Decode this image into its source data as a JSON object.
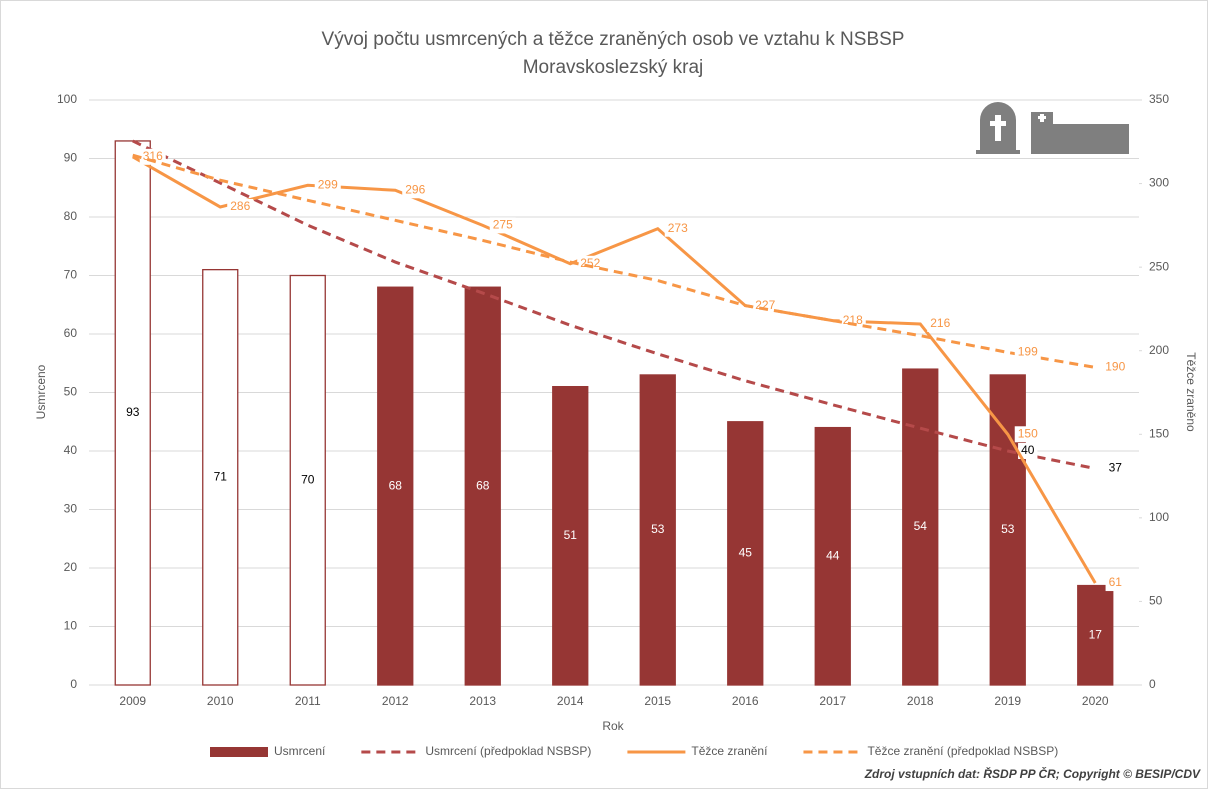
{
  "chart_data": {
    "type": "combo",
    "title": "Vývoj počtu usmrcených a těžce zraněných osob ve vztahu k NSBSP",
    "subtitle": "Moravskoslezský kraj",
    "x_label": "Rok",
    "y_label": "Usmrceno",
    "y2_label": "Těžce zraněno",
    "source": "Zdroj vstupních dat: ŘSDP PP ČR; Copyright © BESIP/CDV",
    "categories": [
      "2009",
      "2010",
      "2011",
      "2012",
      "2013",
      "2014",
      "2015",
      "2016",
      "2017",
      "2018",
      "2019",
      "2020"
    ],
    "ylim": [
      0,
      100
    ],
    "yticks": [
      0,
      10,
      20,
      30,
      40,
      50,
      60,
      70,
      80,
      90,
      100
    ],
    "y2lim": [
      0,
      350
    ],
    "y2ticks": [
      0,
      50,
      100,
      150,
      200,
      250,
      300,
      350
    ],
    "series": [
      {
        "name": "Usmrcení",
        "kind": "bar",
        "color": "#963634",
        "fill_colors": [
          "#ffffff",
          "#ffffff",
          "#ffffff",
          "#963634",
          "#963634",
          "#963634",
          "#963634",
          "#963634",
          "#963634",
          "#963634",
          "#963634",
          "#963634"
        ],
        "values": [
          93,
          71,
          70,
          68,
          68,
          51,
          53,
          45,
          44,
          54,
          53,
          17
        ]
      },
      {
        "name": "Usmrcení (předpoklad NSBSP)",
        "kind": "line",
        "dashed": true,
        "color": "#b54a4a",
        "values": [
          93,
          85.8,
          78.6,
          72.3,
          67,
          61.5,
          56.6,
          52,
          47.9,
          43.9,
          40,
          37
        ],
        "value_labels": [
          null,
          null,
          null,
          null,
          null,
          null,
          null,
          null,
          null,
          null,
          "40",
          "37"
        ]
      },
      {
        "name": "Těžce zranění",
        "kind": "line",
        "dashed": false,
        "color": "#f79646",
        "axis": "y2",
        "values": [
          316,
          286,
          299,
          296,
          275,
          252,
          273,
          227,
          218,
          216,
          150,
          61
        ],
        "value_labels": [
          "316",
          "286",
          "299",
          "296",
          "275",
          "252",
          "273",
          "227",
          "218",
          "216",
          "150",
          "61"
        ]
      },
      {
        "name": "Těžce zranění (předpoklad NSBSP)",
        "kind": "line",
        "dashed": true,
        "color": "#f79646",
        "axis": "y2",
        "values": [
          317,
          302,
          290,
          278,
          266,
          253,
          242,
          227,
          218,
          209,
          199,
          190
        ],
        "value_labels": [
          null,
          null,
          null,
          null,
          null,
          null,
          null,
          null,
          null,
          null,
          "199",
          "190"
        ]
      }
    ]
  }
}
